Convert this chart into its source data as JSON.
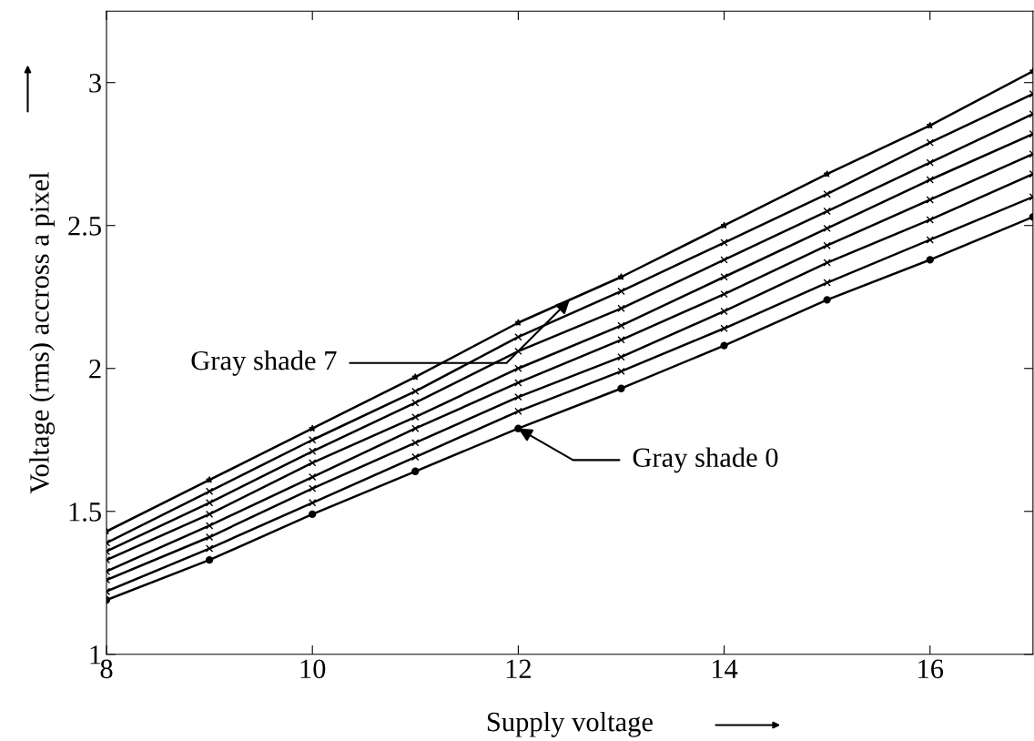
{
  "chart_data": {
    "type": "line",
    "xlabel": "Supply voltage",
    "ylabel": "Voltage (rms) accross a pixel",
    "x": [
      8,
      9,
      10,
      11,
      12,
      13,
      14,
      15,
      16,
      17
    ],
    "series": [
      {
        "color": "#000000",
        "marker": "circle",
        "values": [
          1.19,
          1.33,
          1.49,
          1.64,
          1.79,
          1.93,
          2.08,
          2.24,
          2.38,
          2.53
        ]
      },
      {
        "color": "#000000",
        "marker": "cross",
        "values": [
          1.22,
          1.37,
          1.53,
          1.69,
          1.85,
          1.99,
          2.14,
          2.3,
          2.45,
          2.6
        ]
      },
      {
        "color": "#000000",
        "marker": "cross",
        "values": [
          1.26,
          1.41,
          1.58,
          1.74,
          1.9,
          2.04,
          2.2,
          2.37,
          2.52,
          2.68
        ]
      },
      {
        "color": "#000000",
        "marker": "cross",
        "values": [
          1.29,
          1.45,
          1.62,
          1.79,
          1.95,
          2.1,
          2.26,
          2.43,
          2.59,
          2.75
        ]
      },
      {
        "color": "#000000",
        "marker": "cross",
        "values": [
          1.33,
          1.49,
          1.67,
          1.83,
          2.0,
          2.15,
          2.32,
          2.49,
          2.66,
          2.82
        ]
      },
      {
        "color": "#000000",
        "marker": "cross",
        "values": [
          1.36,
          1.53,
          1.71,
          1.88,
          2.06,
          2.21,
          2.38,
          2.55,
          2.72,
          2.89
        ]
      },
      {
        "color": "#000000",
        "marker": "cross",
        "values": [
          1.39,
          1.57,
          1.75,
          1.92,
          2.11,
          2.27,
          2.44,
          2.61,
          2.79,
          2.96
        ]
      },
      {
        "color": "#000000",
        "marker": "star",
        "values": [
          1.43,
          1.61,
          1.79,
          1.97,
          2.16,
          2.32,
          2.5,
          2.68,
          2.85,
          3.04
        ]
      }
    ],
    "annotations": [
      {
        "text": "Gray shade 7",
        "x": 12.5,
        "y": 2.24
      },
      {
        "text": "Gray shade 0",
        "x": 12,
        "y": 1.79
      }
    ],
    "xlim": [
      8,
      17
    ],
    "ylim": [
      1,
      3.25
    ],
    "xticks": [
      8,
      10,
      12,
      14,
      16
    ],
    "yticks": [
      1,
      1.5,
      2,
      2.5,
      3
    ],
    "grid": false,
    "legend": false,
    "line_style": "solid"
  }
}
